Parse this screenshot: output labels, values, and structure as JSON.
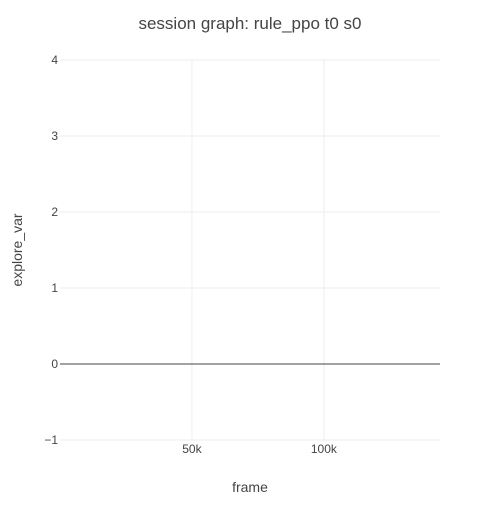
{
  "chart_data": {
    "type": "line",
    "title": "session graph: rule_ppo t0 s0",
    "xlabel": "frame",
    "ylabel": "explore_var",
    "x_ticks": [
      {
        "value": 50000,
        "label": "50k"
      },
      {
        "value": 100000,
        "label": "100k"
      }
    ],
    "y_ticks": [
      {
        "value": -1,
        "label": "−1"
      },
      {
        "value": 0,
        "label": "0"
      },
      {
        "value": 1,
        "label": "1"
      },
      {
        "value": 2,
        "label": "2"
      },
      {
        "value": 3,
        "label": "3"
      },
      {
        "value": 4,
        "label": "4"
      }
    ],
    "xlim": [
      0,
      144000
    ],
    "ylim": [
      -1,
      4
    ],
    "grid": true,
    "series": [],
    "colors": {
      "text": "#444444",
      "grid": "#eeeeee",
      "zeroline": "#444444",
      "background": "#ffffff"
    }
  }
}
